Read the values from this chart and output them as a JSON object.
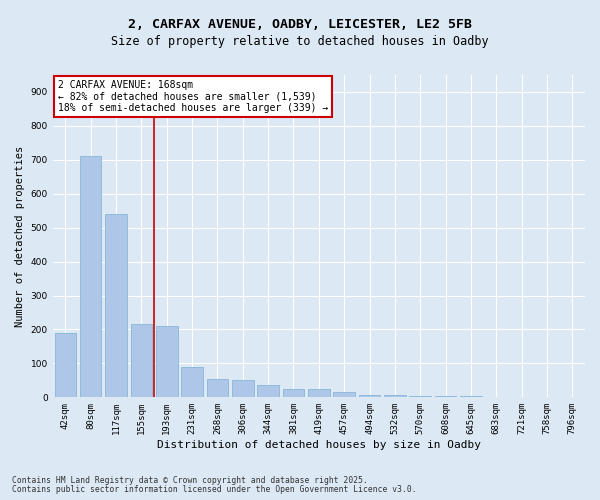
{
  "title1": "2, CARFAX AVENUE, OADBY, LEICESTER, LE2 5FB",
  "title2": "Size of property relative to detached houses in Oadby",
  "xlabel": "Distribution of detached houses by size in Oadby",
  "ylabel": "Number of detached properties",
  "categories": [
    "42sqm",
    "80sqm",
    "117sqm",
    "155sqm",
    "193sqm",
    "231sqm",
    "268sqm",
    "306sqm",
    "344sqm",
    "381sqm",
    "419sqm",
    "457sqm",
    "494sqm",
    "532sqm",
    "570sqm",
    "608sqm",
    "645sqm",
    "683sqm",
    "721sqm",
    "758sqm",
    "796sqm"
  ],
  "values": [
    190,
    710,
    540,
    215,
    210,
    90,
    55,
    50,
    35,
    25,
    25,
    15,
    8,
    8,
    5,
    5,
    3,
    2,
    2,
    1,
    2
  ],
  "bar_color": "#aec6e8",
  "bar_edgecolor": "#7aafd4",
  "vline_color": "#cc0000",
  "annotation_line1": "2 CARFAX AVENUE: 168sqm",
  "annotation_line2": "← 82% of detached houses are smaller (1,539)",
  "annotation_line3": "18% of semi-detached houses are larger (339) →",
  "annotation_box_facecolor": "#ffffff",
  "annotation_box_edgecolor": "#cc0000",
  "ylim": [
    0,
    950
  ],
  "yticks": [
    0,
    100,
    200,
    300,
    400,
    500,
    600,
    700,
    800,
    900
  ],
  "background_color": "#dce9f5",
  "footer1": "Contains HM Land Registry data © Crown copyright and database right 2025.",
  "footer2": "Contains public sector information licensed under the Open Government Licence v3.0.",
  "title1_fontsize": 9.5,
  "title2_fontsize": 8.5,
  "xlabel_fontsize": 8,
  "ylabel_fontsize": 7.5,
  "tick_fontsize": 6.5,
  "annotation_fontsize": 7,
  "footer_fontsize": 5.8
}
